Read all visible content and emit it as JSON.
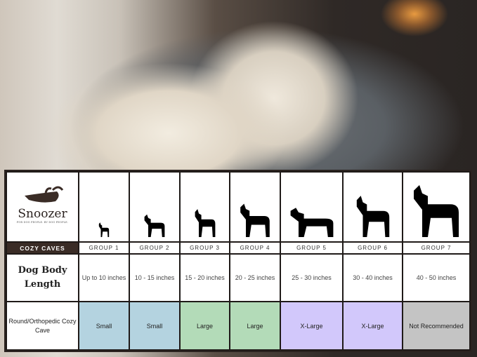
{
  "brand": {
    "name": "Snoozer",
    "tagline": "FOR DOG PEOPLE. BY DOG PEOPLE."
  },
  "section_label": "COZY CAVES",
  "groups": [
    "GROUP 1",
    "GROUP 2",
    "GROUP 3",
    "GROUP 4",
    "GROUP 5",
    "GROUP 6",
    "GROUP 7"
  ],
  "length_label": "Dog Body Length",
  "lengths": [
    "Up to 10 inches",
    "10 - 15 inches",
    "15 - 20 inches",
    "20 - 25 inches",
    "25 - 30 inches",
    "30 - 40 inches",
    "40 - 50 inches"
  ],
  "cave_label": "Round/Orthopedic Cozy Cave",
  "sizes": [
    "Small",
    "Small",
    "Large",
    "Large",
    "X-Large",
    "X-Large",
    "Not Recommended"
  ],
  "size_colors": [
    "#b4d3e0",
    "#b4d3e0",
    "#b3dbb8",
    "#b3dbb8",
    "#d2c8fb",
    "#d2c8fb",
    "#c4c4c4"
  ],
  "dog_icons": [
    "chihuahua-icon",
    "pomeranian-icon",
    "boston-terrier-icon",
    "shiba-inu-icon",
    "golden-retriever-icon",
    "doberman-icon",
    "great-dane-icon"
  ]
}
